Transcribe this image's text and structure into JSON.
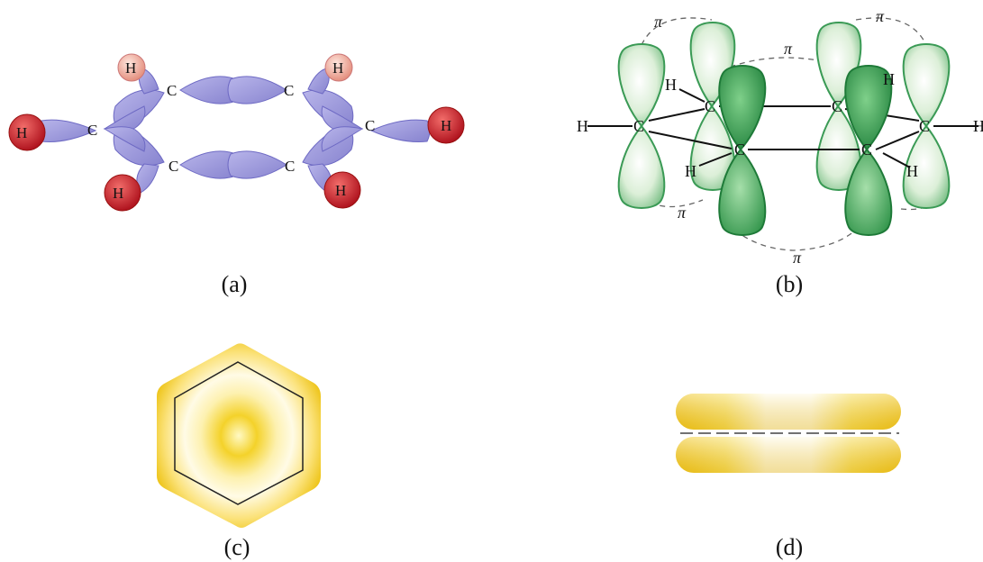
{
  "captions": {
    "a": "(a)",
    "b": "(b)",
    "c": "(c)",
    "d": "(d)"
  },
  "atoms": {
    "carbon": "C",
    "hydrogen": "H"
  },
  "bond_label": "π",
  "colors": {
    "sigma_orbital": "#9d99dc",
    "sigma_edge": "#6e6ac4",
    "hydrogen_light": "#f2b5a8",
    "hydrogen_dark": "#cf2a33",
    "p_orbital_light": "#e4f1e2",
    "p_orbital_dark": "#2f9a4a",
    "pi_cloud": "#f1c81d",
    "pi_cloud_center": "#ffffff"
  }
}
